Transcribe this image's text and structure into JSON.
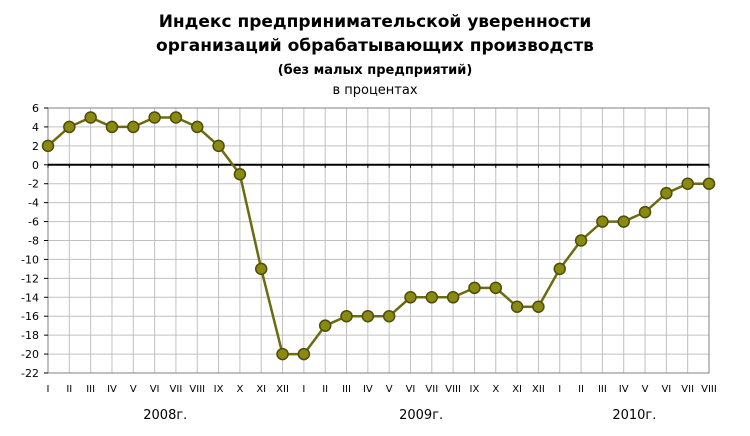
{
  "chart_data": {
    "type": "line",
    "title": "Индекс предпринимательской уверенности",
    "title_line2": "организаций обрабатывающих производств",
    "subtitle": "(без малых предприятий)",
    "units": "в процентах",
    "categories": [
      "I",
      "II",
      "III",
      "IV",
      "V",
      "VI",
      "VII",
      "VIII",
      "IX",
      "X",
      "XI",
      "XII",
      "I",
      "II",
      "III",
      "IV",
      "V",
      "VI",
      "VII",
      "VIII",
      "IX",
      "X",
      "XI",
      "XII",
      "I",
      "II",
      "III",
      "IV",
      "V",
      "VI",
      "VII",
      "VIII"
    ],
    "year_labels": [
      {
        "label": "2008г.",
        "start": 0,
        "end": 11
      },
      {
        "label": "2009г.",
        "start": 12,
        "end": 23
      },
      {
        "label": "2010г.",
        "start": 24,
        "end": 31
      }
    ],
    "series": [
      {
        "values": [
          2,
          4,
          5,
          4,
          4,
          5,
          5,
          4,
          2,
          -1,
          -11,
          -20,
          -20,
          -17,
          -16,
          -16,
          -16,
          -14,
          -14,
          -14,
          -13,
          -13,
          -15,
          -15,
          -11,
          -8,
          -6,
          -6,
          -5,
          -3,
          -2,
          -2
        ]
      }
    ],
    "ylim": [
      -22,
      6
    ],
    "yticks": [
      "6",
      "4",
      "2",
      "0",
      "-2",
      "-4",
      "-6",
      "-8",
      "-10",
      "-12",
      "-14",
      "-16",
      "-18",
      "-20",
      "-22"
    ],
    "grid": true,
    "colors": {
      "line": "#6b6b10",
      "marker_fill": "#8a8a10",
      "marker_stroke": "#4d4d0a",
      "grid": "#c0c0c0",
      "zero_line": "#000000"
    }
  }
}
